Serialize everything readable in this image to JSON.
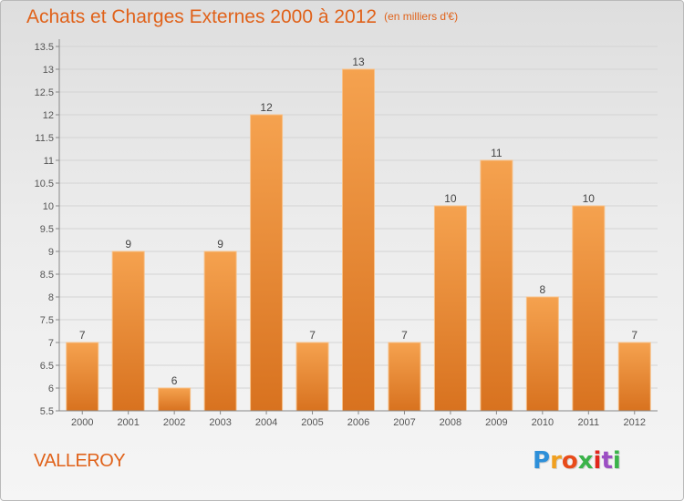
{
  "chart_data": {
    "type": "bar",
    "title": "Achats et Charges Externes 2000 à 2012",
    "unit_note": "(en milliers d'€)",
    "categories": [
      "2000",
      "2001",
      "2002",
      "2003",
      "2004",
      "2005",
      "2006",
      "2007",
      "2008",
      "2009",
      "2010",
      "2011",
      "2012"
    ],
    "values": [
      7,
      9,
      6,
      9,
      12,
      7,
      13,
      7,
      10,
      11,
      8,
      10,
      7
    ],
    "data_labels": [
      "7",
      "9",
      "6",
      "9",
      "12",
      "7",
      "13",
      "7",
      "10",
      "11",
      "8",
      "10",
      "7"
    ],
    "ylim": [
      5.5,
      13.5
    ],
    "yticks": [
      "5.5",
      "6",
      "6.5",
      "7",
      "7.5",
      "8",
      "8.5",
      "9",
      "9.5",
      "10",
      "10.5",
      "11",
      "11.5",
      "12",
      "12.5",
      "13",
      "13.5"
    ],
    "grid": true,
    "bar_color_top": "#f5a24f",
    "bar_color_bottom": "#d8721f"
  },
  "footer": {
    "town": "VALLEROY",
    "logo_text": "Proxiti"
  },
  "colors": {
    "title": "#e0621a",
    "axis_text": "#555555",
    "grid": "#d4d4d4"
  }
}
